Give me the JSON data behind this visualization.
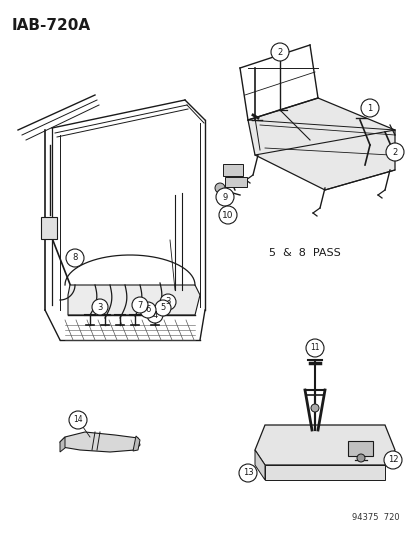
{
  "title": "IAB-720A",
  "background_color": "#ffffff",
  "text_color": "#1a1a1a",
  "label_5_8_pass": "5  &  8  PASS",
  "part_number": "94375  720",
  "fig_width": 4.14,
  "fig_height": 5.33
}
